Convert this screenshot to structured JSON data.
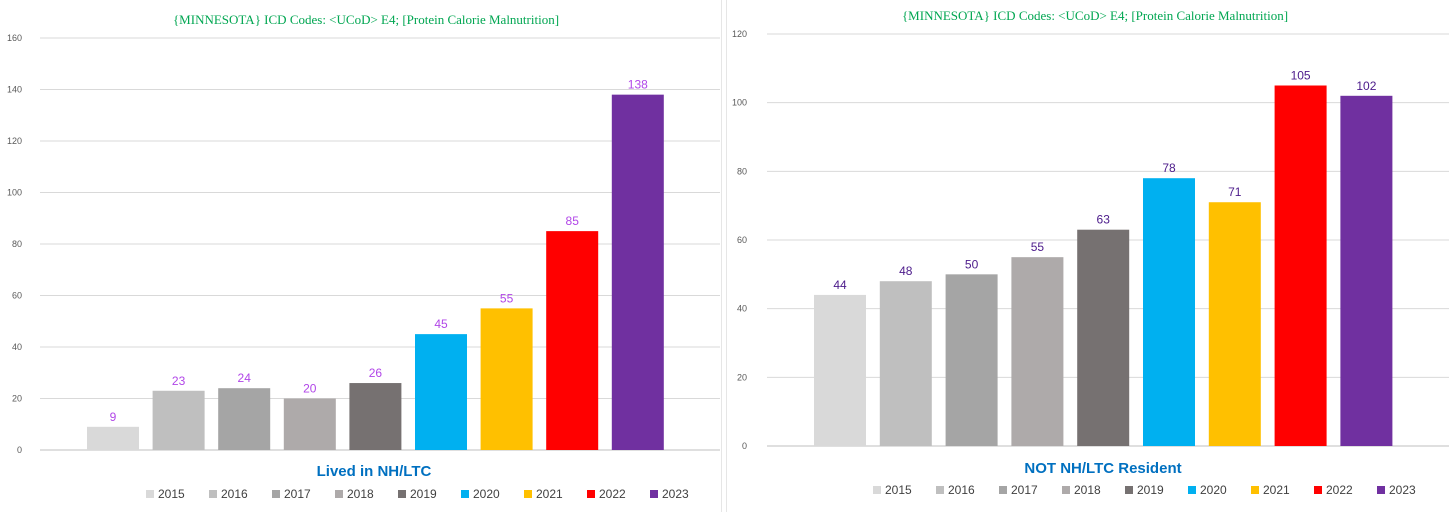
{
  "colors": {
    "2015": "#d9d9d9",
    "2016": "#bfbfbf",
    "2017": "#a5a5a5",
    "2018": "#aeaaaa",
    "2019": "#767171",
    "2020": "#00b0f0",
    "2021": "#ffc000",
    "2022": "#ff0000",
    "2023": "#7030a0"
  },
  "chart_data": [
    {
      "type": "bar",
      "title": "{MINNESOTA}  ICD Codes: <UCoD> E4;  [Protein Calorie Malnutrition]",
      "subtitle": "Lived in NH/LTC",
      "categories": [
        "2015",
        "2016",
        "2017",
        "2018",
        "2019",
        "2020",
        "2021",
        "2022",
        "2023"
      ],
      "values": [
        9,
        23,
        24,
        20,
        26,
        45,
        55,
        85,
        138
      ],
      "ylim": [
        0,
        160
      ],
      "yticks": [
        0,
        20,
        40,
        60,
        80,
        100,
        120,
        140,
        160
      ],
      "grid": true,
      "legend": "bottom",
      "title_color": "#00a651",
      "subtitle_color": "#0070c0",
      "data_label_color": "#b146e8"
    },
    {
      "type": "bar",
      "title": "{MINNESOTA}  ICD Codes: <UCoD> E4;  [Protein Calorie Malnutrition]",
      "subtitle": "NOT NH/LTC Resident",
      "categories": [
        "2015",
        "2016",
        "2017",
        "2018",
        "2019",
        "2020",
        "2021",
        "2022",
        "2023"
      ],
      "values": [
        44,
        48,
        50,
        55,
        63,
        78,
        71,
        105,
        102
      ],
      "ylim": [
        0,
        120
      ],
      "yticks": [
        0,
        20,
        40,
        60,
        80,
        100,
        120
      ],
      "grid": true,
      "legend": "bottom",
      "title_color": "#00a651",
      "subtitle_color": "#0070c0",
      "data_label_color": "#4b1a8a"
    }
  ]
}
